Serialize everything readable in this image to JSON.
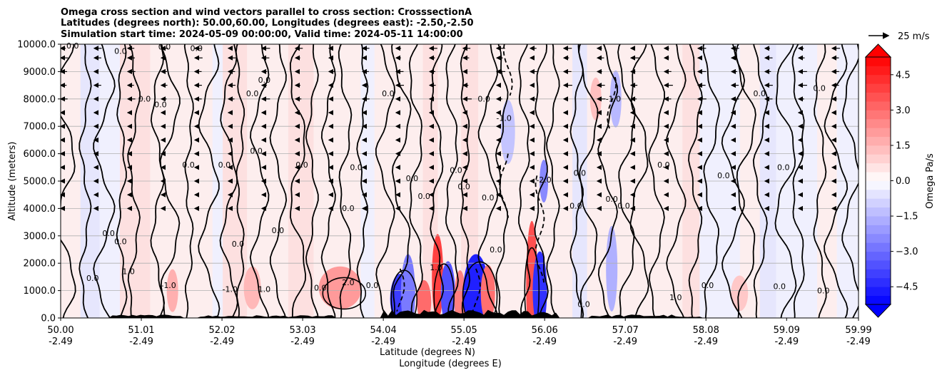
{
  "chart_data": {
    "type": "contour-cross-section",
    "title_lines": [
      "Omega cross section and wind vectors parallel to cross section: CrosssectionA",
      "Latitudes (degrees north): 50.00,60.00, Longitudes (degrees east): -2.50,-2.50",
      "Simulation start time: 2024-05-09 00:00:00, Valid time: 2024-05-11 14:00:00"
    ],
    "ylabel": "Altitude (meters)",
    "xlabel": "Latitude (degrees N)",
    "xlabel2": "Longitude (degrees E)",
    "ylim": [
      0,
      10000
    ],
    "xlim": [
      50.0,
      59.99
    ],
    "y_ticks": [
      0,
      1000,
      2000,
      3000,
      4000,
      5000,
      6000,
      7000,
      8000,
      9000,
      10000
    ],
    "y_tick_labels": [
      "0.0",
      "1000.0",
      "2000.0",
      "3000.0",
      "4000.0",
      "5000.0",
      "6000.0",
      "7000.0",
      "8000.0",
      "9000.0",
      "10000.0"
    ],
    "x_ticks": [
      50.0,
      51.01,
      52.02,
      53.03,
      54.04,
      55.05,
      56.06,
      57.07,
      58.08,
      59.09,
      59.99
    ],
    "x_tick_labels": [
      "50.00",
      "51.01",
      "52.02",
      "53.03",
      "54.04",
      "55.05",
      "56.06",
      "57.07",
      "58.08",
      "59.09",
      "59.99"
    ],
    "x_tick_labels_lon": [
      "-2.49",
      "-2.49",
      "-2.49",
      "-2.49",
      "-2.49",
      "-2.49",
      "-2.49",
      "-2.49",
      "-2.49",
      "-2.49",
      "-2.49"
    ],
    "grid": "horizontal",
    "colorbar": {
      "label": "Omega Pa/s",
      "range": [
        -5.25,
        5.25
      ],
      "step": 0.375,
      "tick_values": [
        -4.5,
        -3.0,
        -1.5,
        0.0,
        1.5,
        3.0,
        4.5
      ],
      "tick_labels": [
        "−4.5",
        "−3.0",
        "−1.5",
        "0.0",
        "1.5",
        "3.0",
        "4.5"
      ],
      "extend": "both",
      "colormap": "bwr"
    },
    "quiver_key": {
      "label": "25 m/s",
      "speed": 25
    },
    "contour_labels": [
      {
        "text": "0.0",
        "x": 50.15,
        "y": 9850
      },
      {
        "text": "0.0",
        "x": 50.75,
        "y": 9650
      },
      {
        "text": "0.0",
        "x": 51.3,
        "y": 9800
      },
      {
        "text": "0.0",
        "x": 51.7,
        "y": 9750
      },
      {
        "text": "0.0",
        "x": 51.25,
        "y": 7700
      },
      {
        "text": "0.0",
        "x": 51.05,
        "y": 7900
      },
      {
        "text": "0.0",
        "x": 51.6,
        "y": 5500
      },
      {
        "text": "0.0",
        "x": 52.05,
        "y": 5500
      },
      {
        "text": "0.0",
        "x": 52.4,
        "y": 8100
      },
      {
        "text": "0.0",
        "x": 52.55,
        "y": 8600
      },
      {
        "text": "0.0",
        "x": 52.45,
        "y": 6000
      },
      {
        "text": "0.0",
        "x": 53.02,
        "y": 5500
      },
      {
        "text": "0.0",
        "x": 53.7,
        "y": 5400
      },
      {
        "text": "0.0",
        "x": 54.1,
        "y": 8100
      },
      {
        "text": "0.0",
        "x": 54.4,
        "y": 5000
      },
      {
        "text": "0.0",
        "x": 54.95,
        "y": 5300
      },
      {
        "text": "0.0",
        "x": 55.3,
        "y": 7900
      },
      {
        "text": "0.0",
        "x": 55.05,
        "y": 4700
      },
      {
        "text": "0.0",
        "x": 54.55,
        "y": 4350
      },
      {
        "text": "0.0",
        "x": 55.35,
        "y": 4300
      },
      {
        "text": "-1.0",
        "x": 55.55,
        "y": 7200
      },
      {
        "text": "-2.0",
        "x": 56.05,
        "y": 4950
      },
      {
        "text": "0.0",
        "x": 56.5,
        "y": 5200
      },
      {
        "text": "0.0",
        "x": 56.45,
        "y": 4000
      },
      {
        "text": "-1.0",
        "x": 56.92,
        "y": 7900
      },
      {
        "text": "0.0",
        "x": 56.9,
        "y": 4250
      },
      {
        "text": "0.0",
        "x": 57.05,
        "y": 4000
      },
      {
        "text": "0.0",
        "x": 57.55,
        "y": 5500
      },
      {
        "text": "0.0",
        "x": 58.3,
        "y": 5100
      },
      {
        "text": "0.0",
        "x": 58.75,
        "y": 8100
      },
      {
        "text": "0.0",
        "x": 59.05,
        "y": 5400
      },
      {
        "text": "0.0",
        "x": 59.5,
        "y": 8300
      },
      {
        "text": "0.0",
        "x": 50.6,
        "y": 3000
      },
      {
        "text": "0.0",
        "x": 50.75,
        "y": 2700
      },
      {
        "text": "0.0",
        "x": 52.22,
        "y": 2600
      },
      {
        "text": "0.0",
        "x": 52.72,
        "y": 3100
      },
      {
        "text": "0.0",
        "x": 53.6,
        "y": 3900
      },
      {
        "text": "0.0",
        "x": 55.45,
        "y": 2400
      },
      {
        "text": "0.0",
        "x": 50.4,
        "y": 1350
      },
      {
        "text": "1.0",
        "x": 50.85,
        "y": 1600
      },
      {
        "text": "-1.0",
        "x": 51.35,
        "y": 1100
      },
      {
        "text": "-1.0",
        "x": 52.12,
        "y": 950
      },
      {
        "text": "1.0",
        "x": 52.55,
        "y": 950
      },
      {
        "text": "0.0",
        "x": 53.25,
        "y": 1000
      },
      {
        "text": "2.0",
        "x": 53.6,
        "y": 1200
      },
      {
        "text": "0.0",
        "x": 53.9,
        "y": 1100
      },
      {
        "text": "1.0",
        "x": 54.7,
        "y": 1750
      },
      {
        "text": "0.0",
        "x": 56.55,
        "y": 400
      },
      {
        "text": "1.0",
        "x": 57.7,
        "y": 650
      },
      {
        "text": "0.0",
        "x": 58.1,
        "y": 1100
      },
      {
        "text": "0.0",
        "x": 59.0,
        "y": 1050
      },
      {
        "text": "0.0",
        "x": 59.55,
        "y": 900
      }
    ]
  }
}
